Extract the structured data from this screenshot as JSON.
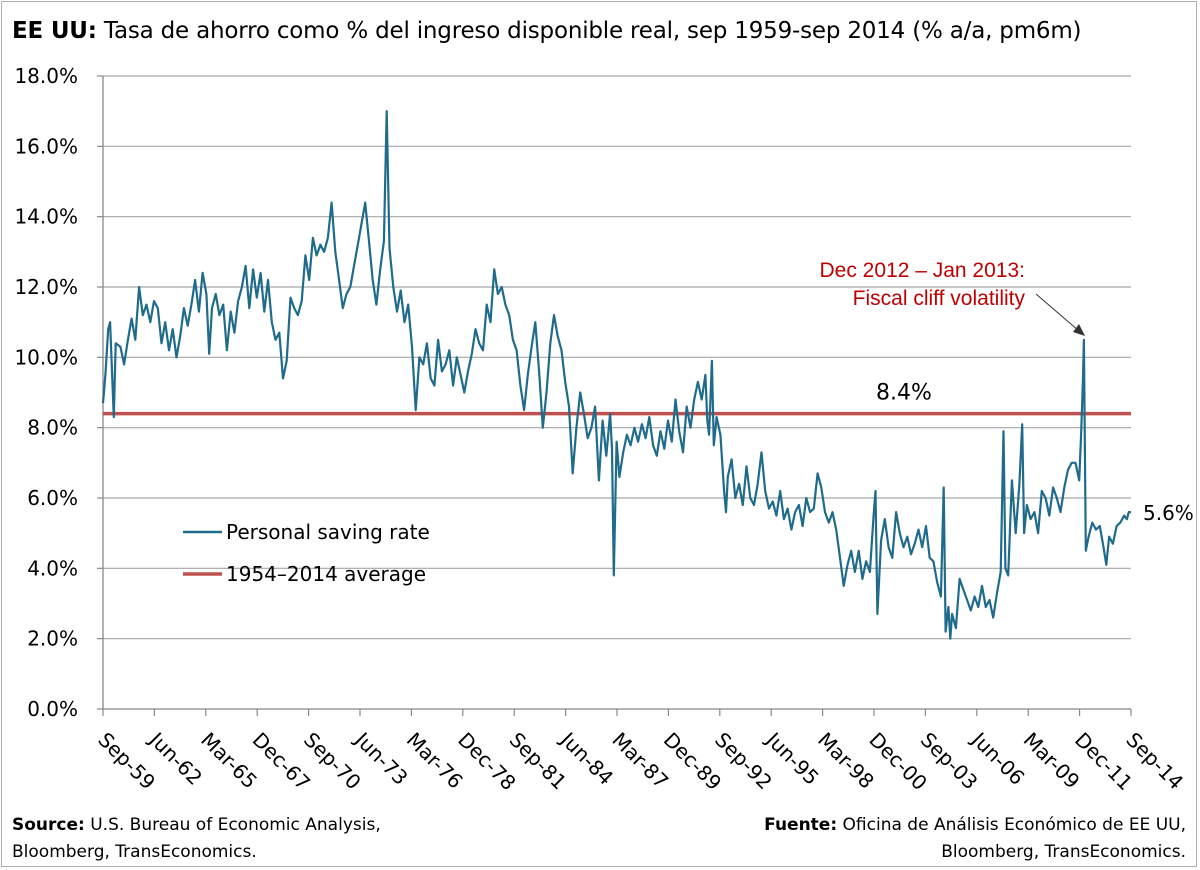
{
  "header": {
    "title_bold": "EE UU:",
    "title_rest": "Tasa de ahorro como % del ingreso disponible real, sep 1959-sep 2014 (% a/a, pm6m)"
  },
  "footer": {
    "left_bold": "Source:",
    "left_line1": "U.S. Bureau of Economic Analysis,",
    "left_line2": "Bloomberg, TransEconomics.",
    "right_bold": "Fuente:",
    "right_line1": "Oficina de Análisis Económico de EE UU,",
    "right_line2": "Bloomberg, TransEconomics."
  },
  "colors": {
    "series": "#1f6b8c",
    "average": "#c0504d",
    "annotation": "#c00000",
    "grid": "#a6a6a6"
  },
  "chart_data": {
    "type": "line",
    "x_start": 1959.67,
    "x_end": 2014.67,
    "ylim": [
      0,
      18
    ],
    "yticks": [
      0,
      2,
      4,
      6,
      8,
      10,
      12,
      14,
      16,
      18
    ],
    "ytick_labels": [
      "0.0%",
      "2.0%",
      "4.0%",
      "6.0%",
      "8.0%",
      "10.0%",
      "12.0%",
      "14.0%",
      "16.0%",
      "18.0%"
    ],
    "xtick_labels": [
      "Sep-59",
      "Jun-62",
      "Mar-65",
      "Dec-67",
      "Sep-70",
      "Jun-73",
      "Mar-76",
      "Dec-78",
      "Sep-81",
      "Jun-84",
      "Mar-87",
      "Dec-89",
      "Sep-92",
      "Jun-95",
      "Mar-98",
      "Dec-00",
      "Sep-03",
      "Jun-06",
      "Mar-09",
      "Dec-11",
      "Sep-14"
    ],
    "grid": true,
    "legend_position": "bottom-left",
    "series": [
      {
        "name": "Personal saving rate",
        "points": [
          [
            1959.67,
            8.7
          ],
          [
            1959.8,
            9.5
          ],
          [
            1959.95,
            10.8
          ],
          [
            1960.05,
            11.0
          ],
          [
            1960.15,
            9.6
          ],
          [
            1960.25,
            8.3
          ],
          [
            1960.35,
            10.4
          ],
          [
            1960.6,
            10.3
          ],
          [
            1960.8,
            9.8
          ],
          [
            1961.0,
            10.5
          ],
          [
            1961.2,
            11.1
          ],
          [
            1961.4,
            10.5
          ],
          [
            1961.6,
            12.0
          ],
          [
            1961.8,
            11.2
          ],
          [
            1962.0,
            11.5
          ],
          [
            1962.2,
            11.0
          ],
          [
            1962.4,
            11.6
          ],
          [
            1962.6,
            11.4
          ],
          [
            1962.8,
            10.4
          ],
          [
            1963.0,
            11.0
          ],
          [
            1963.2,
            10.2
          ],
          [
            1963.4,
            10.8
          ],
          [
            1963.6,
            10.0
          ],
          [
            1963.8,
            10.6
          ],
          [
            1964.0,
            11.4
          ],
          [
            1964.2,
            10.9
          ],
          [
            1964.4,
            11.5
          ],
          [
            1964.6,
            12.2
          ],
          [
            1964.8,
            11.3
          ],
          [
            1965.0,
            12.4
          ],
          [
            1965.2,
            11.8
          ],
          [
            1965.35,
            10.1
          ],
          [
            1965.5,
            11.4
          ],
          [
            1965.7,
            11.8
          ],
          [
            1965.9,
            11.2
          ],
          [
            1966.1,
            11.5
          ],
          [
            1966.3,
            10.2
          ],
          [
            1966.5,
            11.3
          ],
          [
            1966.7,
            10.7
          ],
          [
            1966.9,
            11.6
          ],
          [
            1967.1,
            12.0
          ],
          [
            1967.3,
            12.6
          ],
          [
            1967.5,
            11.4
          ],
          [
            1967.7,
            12.5
          ],
          [
            1967.9,
            11.7
          ],
          [
            1968.1,
            12.4
          ],
          [
            1968.3,
            11.3
          ],
          [
            1968.5,
            12.2
          ],
          [
            1968.7,
            11.0
          ],
          [
            1968.9,
            10.5
          ],
          [
            1969.1,
            10.7
          ],
          [
            1969.3,
            9.4
          ],
          [
            1969.5,
            9.9
          ],
          [
            1969.7,
            11.7
          ],
          [
            1969.9,
            11.4
          ],
          [
            1970.1,
            11.2
          ],
          [
            1970.3,
            11.6
          ],
          [
            1970.5,
            12.9
          ],
          [
            1970.7,
            12.2
          ],
          [
            1970.9,
            13.4
          ],
          [
            1971.1,
            12.9
          ],
          [
            1971.3,
            13.2
          ],
          [
            1971.5,
            13.0
          ],
          [
            1971.7,
            13.4
          ],
          [
            1971.9,
            14.4
          ],
          [
            1972.1,
            13.0
          ],
          [
            1972.3,
            12.2
          ],
          [
            1972.5,
            11.4
          ],
          [
            1972.7,
            11.8
          ],
          [
            1972.9,
            12.0
          ],
          [
            1973.1,
            12.6
          ],
          [
            1973.3,
            13.2
          ],
          [
            1973.5,
            13.8
          ],
          [
            1973.7,
            14.4
          ],
          [
            1973.9,
            13.3
          ],
          [
            1974.1,
            12.2
          ],
          [
            1974.3,
            11.5
          ],
          [
            1974.5,
            12.5
          ],
          [
            1974.7,
            13.3
          ],
          [
            1974.85,
            17.0
          ],
          [
            1975.0,
            13.1
          ],
          [
            1975.2,
            12.0
          ],
          [
            1975.4,
            11.3
          ],
          [
            1975.6,
            11.9
          ],
          [
            1975.8,
            11.0
          ],
          [
            1976.0,
            11.5
          ],
          [
            1976.2,
            10.3
          ],
          [
            1976.4,
            8.5
          ],
          [
            1976.6,
            10.0
          ],
          [
            1976.8,
            9.8
          ],
          [
            1977.0,
            10.4
          ],
          [
            1977.2,
            9.4
          ],
          [
            1977.4,
            9.2
          ],
          [
            1977.6,
            10.5
          ],
          [
            1977.8,
            9.6
          ],
          [
            1978.0,
            9.8
          ],
          [
            1978.2,
            10.2
          ],
          [
            1978.4,
            9.2
          ],
          [
            1978.6,
            10.0
          ],
          [
            1978.8,
            9.5
          ],
          [
            1979.0,
            9.0
          ],
          [
            1979.2,
            9.6
          ],
          [
            1979.4,
            10.1
          ],
          [
            1979.6,
            10.8
          ],
          [
            1979.8,
            10.4
          ],
          [
            1980.0,
            10.2
          ],
          [
            1980.2,
            11.5
          ],
          [
            1980.4,
            11.0
          ],
          [
            1980.6,
            12.5
          ],
          [
            1980.8,
            11.8
          ],
          [
            1981.0,
            12.0
          ],
          [
            1981.2,
            11.5
          ],
          [
            1981.4,
            11.2
          ],
          [
            1981.6,
            10.5
          ],
          [
            1981.8,
            10.2
          ],
          [
            1982.0,
            9.2
          ],
          [
            1982.2,
            8.5
          ],
          [
            1982.4,
            9.5
          ],
          [
            1982.6,
            10.3
          ],
          [
            1982.8,
            11.0
          ],
          [
            1983.0,
            9.6
          ],
          [
            1983.2,
            8.0
          ],
          [
            1983.4,
            9.0
          ],
          [
            1983.6,
            10.4
          ],
          [
            1983.8,
            11.2
          ],
          [
            1984.0,
            10.6
          ],
          [
            1984.2,
            10.2
          ],
          [
            1984.4,
            9.3
          ],
          [
            1984.6,
            8.6
          ],
          [
            1984.8,
            6.7
          ],
          [
            1985.0,
            8.0
          ],
          [
            1985.2,
            9.0
          ],
          [
            1985.4,
            8.4
          ],
          [
            1985.6,
            7.7
          ],
          [
            1985.8,
            8.0
          ],
          [
            1986.0,
            8.6
          ],
          [
            1986.2,
            6.5
          ],
          [
            1986.4,
            8.2
          ],
          [
            1986.6,
            7.2
          ],
          [
            1986.8,
            8.4
          ],
          [
            1986.9,
            7.4
          ],
          [
            1987.0,
            3.8
          ],
          [
            1987.15,
            7.6
          ],
          [
            1987.3,
            6.6
          ],
          [
            1987.5,
            7.3
          ],
          [
            1987.7,
            7.8
          ],
          [
            1987.9,
            7.5
          ],
          [
            1988.1,
            8.0
          ],
          [
            1988.3,
            7.6
          ],
          [
            1988.5,
            8.1
          ],
          [
            1988.7,
            7.7
          ],
          [
            1988.9,
            8.3
          ],
          [
            1989.1,
            7.5
          ],
          [
            1989.3,
            7.2
          ],
          [
            1989.5,
            7.9
          ],
          [
            1989.7,
            7.4
          ],
          [
            1989.9,
            8.2
          ],
          [
            1990.1,
            7.6
          ],
          [
            1990.3,
            8.8
          ],
          [
            1990.5,
            7.9
          ],
          [
            1990.7,
            7.3
          ],
          [
            1990.9,
            8.6
          ],
          [
            1991.1,
            8.0
          ],
          [
            1991.3,
            8.8
          ],
          [
            1991.5,
            9.3
          ],
          [
            1991.7,
            8.8
          ],
          [
            1991.9,
            9.5
          ],
          [
            1992.0,
            8.2
          ],
          [
            1992.1,
            7.8
          ],
          [
            1992.25,
            9.9
          ],
          [
            1992.35,
            7.5
          ],
          [
            1992.5,
            8.3
          ],
          [
            1992.7,
            7.8
          ],
          [
            1992.9,
            6.2
          ],
          [
            1993.0,
            5.6
          ],
          [
            1993.1,
            6.6
          ],
          [
            1993.3,
            7.1
          ],
          [
            1993.5,
            6.0
          ],
          [
            1993.7,
            6.4
          ],
          [
            1993.9,
            5.8
          ],
          [
            1994.1,
            6.9
          ],
          [
            1994.3,
            6.0
          ],
          [
            1994.5,
            5.8
          ],
          [
            1994.7,
            6.4
          ],
          [
            1994.9,
            7.3
          ],
          [
            1995.1,
            6.2
          ],
          [
            1995.3,
            5.7
          ],
          [
            1995.5,
            5.9
          ],
          [
            1995.7,
            5.5
          ],
          [
            1995.9,
            6.2
          ],
          [
            1996.1,
            5.4
          ],
          [
            1996.3,
            5.7
          ],
          [
            1996.5,
            5.1
          ],
          [
            1996.7,
            5.6
          ],
          [
            1996.9,
            5.8
          ],
          [
            1997.1,
            5.2
          ],
          [
            1997.3,
            6.0
          ],
          [
            1997.5,
            5.6
          ],
          [
            1997.7,
            5.7
          ],
          [
            1997.9,
            6.7
          ],
          [
            1998.1,
            6.3
          ],
          [
            1998.3,
            5.6
          ],
          [
            1998.5,
            5.3
          ],
          [
            1998.7,
            5.6
          ],
          [
            1998.9,
            5.1
          ],
          [
            1999.1,
            4.3
          ],
          [
            1999.3,
            3.5
          ],
          [
            1999.5,
            4.1
          ],
          [
            1999.7,
            4.5
          ],
          [
            1999.9,
            3.9
          ],
          [
            2000.1,
            4.5
          ],
          [
            2000.3,
            3.7
          ],
          [
            2000.5,
            4.2
          ],
          [
            2000.7,
            3.9
          ],
          [
            2000.9,
            5.5
          ],
          [
            2001.0,
            6.2
          ],
          [
            2001.1,
            2.7
          ],
          [
            2001.3,
            4.8
          ],
          [
            2001.5,
            5.4
          ],
          [
            2001.7,
            4.6
          ],
          [
            2001.9,
            4.3
          ],
          [
            2002.1,
            5.6
          ],
          [
            2002.3,
            5.0
          ],
          [
            2002.5,
            4.6
          ],
          [
            2002.7,
            4.9
          ],
          [
            2002.9,
            4.4
          ],
          [
            2003.1,
            4.7
          ],
          [
            2003.3,
            5.1
          ],
          [
            2003.5,
            4.6
          ],
          [
            2003.7,
            5.2
          ],
          [
            2003.9,
            4.3
          ],
          [
            2004.1,
            4.2
          ],
          [
            2004.3,
            3.6
          ],
          [
            2004.5,
            3.2
          ],
          [
            2004.65,
            6.3
          ],
          [
            2004.75,
            2.2
          ],
          [
            2004.9,
            2.9
          ],
          [
            2005.0,
            2.0
          ],
          [
            2005.1,
            2.7
          ],
          [
            2005.3,
            2.3
          ],
          [
            2005.5,
            3.7
          ],
          [
            2005.7,
            3.4
          ],
          [
            2005.9,
            3.1
          ],
          [
            2006.1,
            2.8
          ],
          [
            2006.3,
            3.2
          ],
          [
            2006.5,
            2.9
          ],
          [
            2006.7,
            3.5
          ],
          [
            2006.9,
            2.9
          ],
          [
            2007.1,
            3.1
          ],
          [
            2007.3,
            2.6
          ],
          [
            2007.5,
            3.3
          ],
          [
            2007.7,
            3.9
          ],
          [
            2007.85,
            7.9
          ],
          [
            2007.95,
            4.0
          ],
          [
            2008.1,
            3.8
          ],
          [
            2008.3,
            6.5
          ],
          [
            2008.5,
            5.0
          ],
          [
            2008.7,
            6.4
          ],
          [
            2008.85,
            8.1
          ],
          [
            2008.95,
            5.0
          ],
          [
            2009.1,
            5.8
          ],
          [
            2009.3,
            5.4
          ],
          [
            2009.5,
            5.6
          ],
          [
            2009.7,
            5.0
          ],
          [
            2009.9,
            6.2
          ],
          [
            2010.1,
            6.0
          ],
          [
            2010.3,
            5.5
          ],
          [
            2010.5,
            6.3
          ],
          [
            2010.7,
            6.0
          ],
          [
            2010.9,
            5.6
          ],
          [
            2011.1,
            6.3
          ],
          [
            2011.3,
            6.8
          ],
          [
            2011.5,
            7.0
          ],
          [
            2011.7,
            7.0
          ],
          [
            2011.9,
            6.5
          ],
          [
            2012.0,
            7.8
          ],
          [
            2012.1,
            9.4
          ],
          [
            2012.15,
            10.5
          ],
          [
            2012.25,
            4.5
          ],
          [
            2012.4,
            4.9
          ],
          [
            2012.6,
            5.3
          ],
          [
            2012.8,
            5.1
          ],
          [
            2013.0,
            5.2
          ],
          [
            2013.2,
            4.6
          ],
          [
            2013.35,
            4.1
          ],
          [
            2013.5,
            4.9
          ],
          [
            2013.7,
            4.7
          ],
          [
            2013.9,
            5.2
          ],
          [
            2014.1,
            5.3
          ],
          [
            2014.3,
            5.5
          ],
          [
            2014.45,
            5.4
          ],
          [
            2014.55,
            5.6
          ],
          [
            2014.67,
            5.6
          ]
        ]
      },
      {
        "name": "1954–2014 average",
        "value": 8.4
      }
    ],
    "annotations": {
      "average_label": "8.4%",
      "end_label": "5.6%",
      "fiscal_line1": "Dec 2012 – Jan 2013:",
      "fiscal_line2": "Fiscal cliff volatility"
    }
  }
}
